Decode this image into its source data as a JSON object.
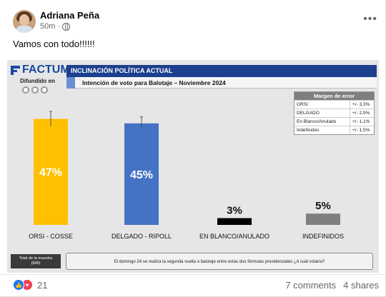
{
  "post": {
    "author": "Adriana Peña",
    "time": "50m",
    "separator": "·",
    "text": "Vamos con todo!!!!!!",
    "more_icon": "more-dots-icon",
    "privacy_icon": "globe-icon"
  },
  "image": {
    "brand": "FACTUM",
    "difundido": "Difundido en",
    "header_title": "INCLINACIÓN POLÍTICA ACTUAL",
    "header_subtitle": "Intención de voto para Balotaje – Noviembre 2024",
    "margin_title": "Margen de error",
    "margin_rows": [
      {
        "label": "ORSI",
        "value": "+/- 3,3%"
      },
      {
        "label": "DELGADO",
        "value": "+/- 2,9%"
      },
      {
        "label": "En Blanco/Anulado",
        "value": "+/- 1,1%"
      },
      {
        "label": "Indefinidos",
        "value": "+/- 1,5%"
      }
    ],
    "sample_label": "Total de la muestra",
    "sample_value": "(900)",
    "question": "El domingo 24 se realiza la segunda vuelta o balotaje entre estas dos fórmulas presidenciales ¿A cuál votaría?"
  },
  "chart_data": {
    "type": "bar",
    "title": "INCLINACIÓN POLÍTICA ACTUAL",
    "subtitle": "Intención de voto para Balotaje – Noviembre 2024",
    "categories": [
      "ORSI - COSSE",
      "DELGADO - RIPOLL",
      "EN BLANCO/ANULADO",
      "INDEFINIDOS"
    ],
    "values": [
      47,
      45,
      3,
      5
    ],
    "value_labels": [
      "47%",
      "45%",
      "3%",
      "5%"
    ],
    "colors": [
      "#ffc000",
      "#4472c4",
      "#000000",
      "#7f7f7f"
    ],
    "error_margins": [
      3.3,
      2.9,
      1.1,
      1.5
    ],
    "ylim": [
      0,
      50
    ]
  },
  "footer": {
    "reaction_count": "21",
    "comments": "7 comments",
    "shares": "4 shares",
    "reaction_icons": [
      "like-icon",
      "love-icon"
    ]
  }
}
